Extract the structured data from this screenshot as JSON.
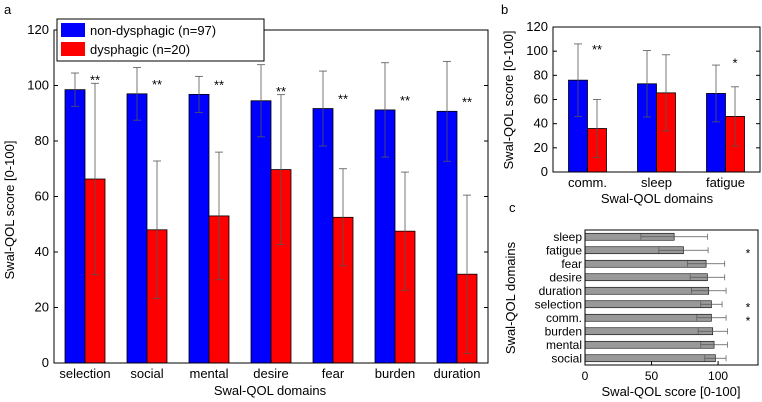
{
  "colors": {
    "blue": "#0000ff",
    "red": "#ff0000",
    "gray": "#999999",
    "axis": "#000000",
    "errbar": "#555555"
  },
  "chart_data": [
    {
      "panel_label": "a",
      "type": "bar",
      "categories": [
        "selection",
        "social",
        "mental",
        "desire",
        "fear",
        "burden",
        "duration"
      ],
      "series": [
        {
          "name": "non-dysphagic (n=97)",
          "color_key": "blue",
          "values": [
            98.5,
            97,
            96.8,
            94.5,
            91.7,
            91.2,
            90.7
          ],
          "errors": [
            6,
            9.5,
            6.5,
            13,
            13.5,
            17,
            18
          ]
        },
        {
          "name": "dysphagic (n=20)",
          "color_key": "red",
          "values": [
            66.3,
            48,
            53,
            69.7,
            52.5,
            47.5,
            32
          ],
          "errors": [
            34.5,
            24.8,
            23,
            27,
            17.5,
            21.3,
            28.5
          ]
        }
      ],
      "significance": [
        "**",
        "**",
        "**",
        "**",
        "**",
        "**",
        "**"
      ],
      "xlabel": "Swal-QOL domains",
      "ylabel": "Swal-QOL score [0-100]",
      "ylim": [
        0,
        120
      ],
      "yticks": [
        0,
        20,
        40,
        60,
        80,
        100,
        120
      ],
      "legend": "top-left"
    },
    {
      "panel_label": "b",
      "type": "bar",
      "categories": [
        "comm.",
        "sleep",
        "fatigue"
      ],
      "series": [
        {
          "name": "non-dysphagic (n=97)",
          "color_key": "blue",
          "values": [
            76,
            73,
            65
          ],
          "errors": [
            30,
            27.5,
            23.5
          ]
        },
        {
          "name": "dysphagic (n=20)",
          "color_key": "red",
          "values": [
            36,
            65.5,
            46
          ],
          "errors": [
            24,
            31.5,
            24.5
          ]
        }
      ],
      "significance": [
        "**",
        "",
        "*"
      ],
      "xlabel": "Swal-QOL domains",
      "ylabel": "Swal-QOL score [0-100]",
      "ylim": [
        0,
        120
      ],
      "yticks": [
        0,
        20,
        40,
        60,
        80,
        100,
        120
      ]
    },
    {
      "panel_label": "c",
      "type": "bar",
      "orientation": "horizontal",
      "categories": [
        "sleep",
        "fatigue",
        "fear",
        "desire",
        "duration",
        "selection",
        "comm.",
        "burden",
        "mental",
        "social"
      ],
      "values": [
        67,
        74,
        91,
        92,
        93,
        95,
        95,
        96,
        97,
        98
      ],
      "errors": [
        25,
        18.5,
        14,
        13,
        13,
        8,
        11,
        11,
        10,
        8
      ],
      "significance": [
        "",
        "*",
        "",
        "",
        "",
        "*",
        "*",
        "",
        "",
        ""
      ],
      "xlabel": "Swal-QOL score [0-100]",
      "ylabel": "Swal-QOL domains",
      "xlim": [
        0,
        130
      ],
      "xticks": [
        0,
        50,
        100
      ]
    }
  ]
}
